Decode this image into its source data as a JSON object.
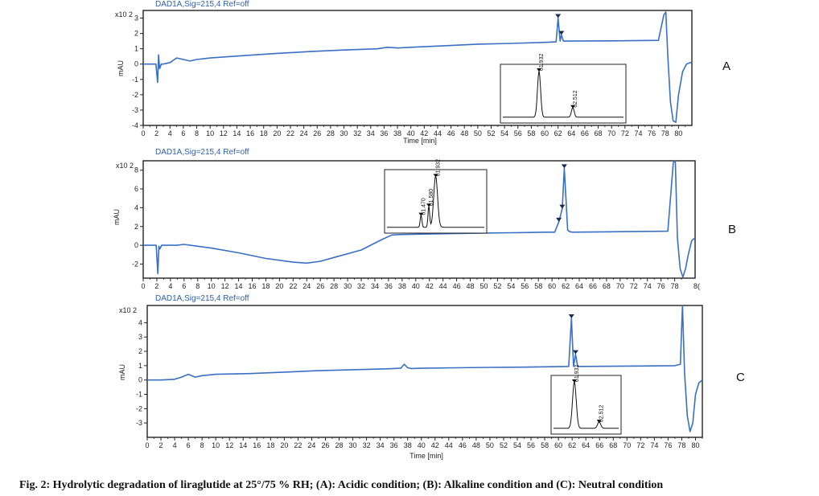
{
  "caption": "Fig. 2: Hydrolytic degradation of liraglutide at 25°/75 % RH; (A): Acidic condition; (B): Alkaline condition and (C): Neutral condition",
  "colors": {
    "trace": "#3a6fc4",
    "header": "#2f5fa8",
    "axis": "#222222",
    "inset": "#222222"
  },
  "chart_data": [
    {
      "type": "line",
      "panel_label": "A",
      "header": "DAD1A,Sig=215,4  Ref=off",
      "xlabel": "Time [min]",
      "ylabel": "mAU",
      "y_multiplier": "x10 2",
      "xlim": [
        0,
        82
      ],
      "ylim": [
        -4,
        3.5
      ],
      "x_ticks": [
        0,
        2,
        4,
        6,
        8,
        10,
        12,
        14,
        16,
        18,
        20,
        22,
        24,
        26,
        28,
        30,
        32,
        34,
        36,
        38,
        40,
        42,
        44,
        46,
        48,
        50,
        52,
        54,
        56,
        58,
        60,
        62,
        64,
        66,
        68,
        70,
        72,
        74,
        76,
        78,
        80
      ],
      "y_ticks": [
        -4,
        -3,
        -2,
        -1,
        0,
        1,
        2,
        3
      ],
      "y_tick_labels": [
        "-4",
        "-3",
        "-2",
        "-1",
        "0",
        "1",
        "2",
        "3"
      ],
      "series": [
        {
          "x": [
            0,
            1.9,
            2.15,
            2.3,
            2.45,
            2.7,
            3,
            4,
            5,
            6,
            7,
            8,
            10,
            15,
            20,
            25,
            30,
            35,
            36.5,
            38,
            40,
            45,
            50,
            55,
            60,
            61.7,
            62.0,
            62.3,
            62.5,
            62.8,
            63.3,
            70,
            77,
            77.8,
            78.1,
            78.4,
            78.8,
            79.2,
            79.6,
            80,
            80.6,
            81.2,
            81.8,
            82
          ],
          "y": [
            0,
            0,
            -1.2,
            0.6,
            -0.3,
            0.0,
            0.0,
            0.1,
            0.4,
            0.3,
            0.2,
            0.3,
            0.4,
            0.55,
            0.7,
            0.82,
            0.92,
            1.0,
            1.1,
            1.05,
            1.1,
            1.2,
            1.3,
            1.35,
            1.42,
            1.45,
            3.0,
            1.5,
            1.9,
            1.5,
            1.5,
            1.52,
            1.55,
            3.2,
            3.4,
            0.5,
            -2.5,
            -3.7,
            -3.8,
            -2.0,
            -0.5,
            0.0,
            0.1,
            0.1
          ]
        }
      ],
      "markers": [
        {
          "x": 62.0,
          "y": 3.0
        },
        {
          "x": 62.5,
          "y": 1.9
        }
      ],
      "inset": {
        "peaks": [
          {
            "label": "61.932",
            "x": 0.3,
            "h": 0.95,
            "w": 0.018
          },
          {
            "label": "62.512",
            "x": 0.58,
            "h": 0.2,
            "w": 0.016
          }
        ]
      }
    },
    {
      "type": "line",
      "panel_label": "B",
      "header": "DAD1A,Sig=215,4  Ref=off",
      "xlabel": "",
      "ylabel": "mAU",
      "y_multiplier": "x10 2",
      "xlim": [
        0,
        81
      ],
      "ylim": [
        -3.5,
        9
      ],
      "x_ticks": [
        0,
        2,
        4,
        6,
        8,
        10,
        12,
        14,
        16,
        18,
        20,
        22,
        24,
        26,
        28,
        30,
        32,
        34,
        36,
        38,
        40,
        42,
        44,
        46,
        48,
        50,
        52,
        54,
        56,
        58,
        60,
        62,
        64,
        66,
        68,
        70,
        72,
        74,
        76,
        78
      ],
      "y_ticks": [
        -2,
        0,
        2,
        4,
        6,
        8
      ],
      "y_tick_labels": [
        "-2",
        "0",
        "2",
        "4",
        "6",
        "8"
      ],
      "x_last_label": "8(",
      "series": [
        {
          "x": [
            0,
            1.9,
            2.15,
            2.3,
            2.45,
            2.7,
            3,
            4,
            5,
            6,
            8,
            10,
            14,
            18,
            22,
            24,
            26,
            28,
            32,
            35,
            36.5,
            38,
            42,
            46,
            50,
            55,
            59,
            60.4,
            61.0,
            61.5,
            61.8,
            62.3,
            62.6,
            63,
            70,
            77,
            77.8,
            78.1,
            78.4,
            78.8,
            79.2,
            79.6,
            80,
            80.5,
            81
          ],
          "y": [
            0,
            0,
            -3.0,
            -0.1,
            -0.4,
            0,
            0,
            0,
            0,
            0.1,
            -0.1,
            -0.3,
            -0.8,
            -1.4,
            -1.8,
            -1.9,
            -1.7,
            -1.3,
            -0.5,
            0.6,
            1.1,
            1.15,
            1.2,
            1.25,
            1.3,
            1.35,
            1.4,
            1.4,
            2.5,
            3.9,
            8.2,
            1.6,
            1.45,
            1.4,
            1.45,
            1.5,
            8.8,
            9.0,
            0.8,
            -2.5,
            -3.4,
            -2.5,
            -1.0,
            0.5,
            0.8
          ]
        }
      ],
      "markers": [
        {
          "x": 61.0,
          "y": 2.5
        },
        {
          "x": 61.5,
          "y": 3.9
        },
        {
          "x": 61.8,
          "y": 8.2
        }
      ],
      "inset": {
        "peaks": [
          {
            "label": "61.470",
            "x": 0.35,
            "h": 0.23,
            "w": 0.012
          },
          {
            "label": "61.580",
            "x": 0.43,
            "h": 0.4,
            "w": 0.012
          },
          {
            "label": "61.932",
            "x": 0.5,
            "h": 0.95,
            "w": 0.028
          }
        ]
      }
    },
    {
      "type": "line",
      "panel_label": "C",
      "header": "DAD1A,Sig=215,4  Ref=off",
      "xlabel": "Time [min]",
      "ylabel": "mAU",
      "y_multiplier": "x10 2",
      "xlim": [
        0,
        81
      ],
      "ylim": [
        -4,
        5.2
      ],
      "x_ticks": [
        0,
        2,
        4,
        6,
        8,
        10,
        12,
        14,
        16,
        18,
        20,
        22,
        24,
        26,
        28,
        30,
        32,
        34,
        36,
        38,
        40,
        42,
        44,
        46,
        48,
        50,
        52,
        54,
        56,
        58,
        60,
        62,
        64,
        66,
        68,
        70,
        72,
        74,
        76,
        78,
        80
      ],
      "y_ticks": [
        -3,
        -2,
        -1,
        0,
        1,
        2,
        3,
        4
      ],
      "y_tick_labels": [
        "-3",
        "-2",
        "-1",
        "0",
        "1",
        "2",
        "3",
        "4"
      ],
      "series": [
        {
          "x": [
            0,
            2,
            4,
            5,
            6,
            7,
            8,
            10,
            15,
            20,
            25,
            30,
            35,
            37,
            37.5,
            38,
            38.5,
            40,
            45,
            50,
            55,
            60,
            61.5,
            61.9,
            62.2,
            62.5,
            62.8,
            63.1,
            63.5,
            70,
            77,
            77.8,
            78.1,
            78.4,
            78.8,
            79.2,
            79.6,
            80,
            80.5,
            81
          ],
          "y": [
            0,
            0,
            0.05,
            0.2,
            0.4,
            0.2,
            0.3,
            0.4,
            0.45,
            0.55,
            0.65,
            0.72,
            0.78,
            0.82,
            1.1,
            0.85,
            0.8,
            0.82,
            0.85,
            0.88,
            0.9,
            0.93,
            0.95,
            4.3,
            0.95,
            1.8,
            0.95,
            0.95,
            0.95,
            0.97,
            1.0,
            1.1,
            5.2,
            0.5,
            -2.5,
            -3.6,
            -3.0,
            -1.0,
            -0.2,
            0
          ]
        }
      ],
      "markers": [
        {
          "x": 61.9,
          "y": 4.3
        },
        {
          "x": 62.5,
          "y": 1.8
        }
      ],
      "inset": {
        "peaks": [
          {
            "label": "61.932",
            "x": 0.32,
            "h": 0.95,
            "w": 0.04
          },
          {
            "label": "62.512",
            "x": 0.7,
            "h": 0.13,
            "w": 0.035
          }
        ]
      }
    }
  ]
}
